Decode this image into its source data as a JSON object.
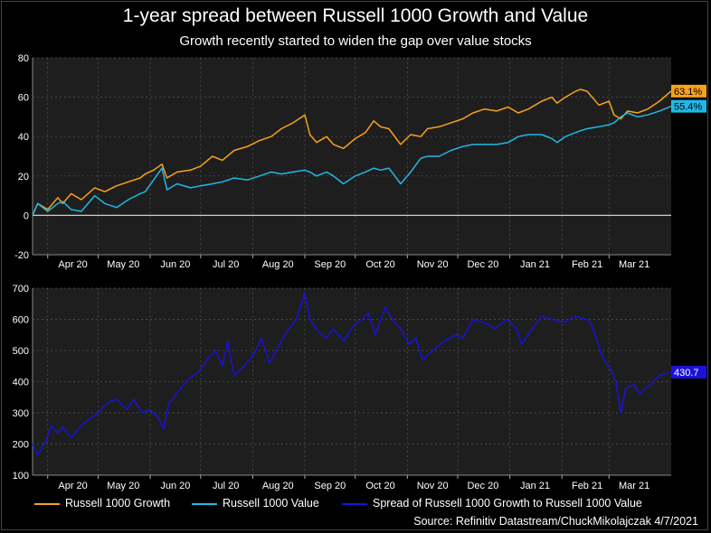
{
  "title": "1-year spread between Russell 1000 Growth and Value",
  "subtitle": "Growth recently started to widen the gap over value stocks",
  "source": "Source: Refinitiv Datastream/ChuckMikolajczak 4/7/2021",
  "colors": {
    "growth": "#f7a21b",
    "value": "#21b8e6",
    "spread": "#1a12d9",
    "background": "#1e1e1e",
    "grid": "#555555"
  },
  "chart_data": [
    {
      "type": "line",
      "x_ticks": [
        "Apr 20",
        "May 20",
        "Jun 20",
        "Jul 20",
        "Aug 20",
        "Sep 20",
        "Oct 20",
        "Nov 20",
        "Dec 20",
        "Jan 21",
        "Feb 21",
        "Mar 21"
      ],
      "x_range": [
        "2020-03-23",
        "2021-04-07"
      ],
      "ylim": [
        -20,
        80
      ],
      "y_ticks": [
        80,
        60,
        40,
        20,
        0,
        -20
      ],
      "grid": true,
      "zero_line": true,
      "series": [
        {
          "name": "Russell 1000 Growth",
          "color": "#f7a21b",
          "end_label": "63.1%",
          "points": [
            [
              "2020-03-23",
              0
            ],
            [
              "2020-03-26",
              6
            ],
            [
              "2020-04-01",
              3
            ],
            [
              "2020-04-07",
              9
            ],
            [
              "2020-04-10",
              6
            ],
            [
              "2020-04-15",
              11
            ],
            [
              "2020-04-21",
              8
            ],
            [
              "2020-04-29",
              14
            ],
            [
              "2020-05-05",
              12
            ],
            [
              "2020-05-12",
              15
            ],
            [
              "2020-05-19",
              17
            ],
            [
              "2020-05-26",
              19
            ],
            [
              "2020-05-29",
              21
            ],
            [
              "2020-06-03",
              23
            ],
            [
              "2020-06-08",
              26
            ],
            [
              "2020-06-11",
              19
            ],
            [
              "2020-06-17",
              22
            ],
            [
              "2020-06-25",
              23
            ],
            [
              "2020-07-01",
              25
            ],
            [
              "2020-07-08",
              30
            ],
            [
              "2020-07-14",
              28
            ],
            [
              "2020-07-21",
              33
            ],
            [
              "2020-07-29",
              35
            ],
            [
              "2020-08-05",
              38
            ],
            [
              "2020-08-12",
              40
            ],
            [
              "2020-08-18",
              44
            ],
            [
              "2020-08-25",
              47
            ],
            [
              "2020-09-01",
              51
            ],
            [
              "2020-09-04",
              41
            ],
            [
              "2020-09-08",
              37
            ],
            [
              "2020-09-14",
              40
            ],
            [
              "2020-09-18",
              36
            ],
            [
              "2020-09-24",
              34
            ],
            [
              "2020-10-01",
              39
            ],
            [
              "2020-10-07",
              42
            ],
            [
              "2020-10-12",
              48
            ],
            [
              "2020-10-16",
              45
            ],
            [
              "2020-10-21",
              44
            ],
            [
              "2020-10-28",
              36
            ],
            [
              "2020-11-03",
              41
            ],
            [
              "2020-11-09",
              40
            ],
            [
              "2020-11-13",
              44
            ],
            [
              "2020-11-20",
              45
            ],
            [
              "2020-11-27",
              47
            ],
            [
              "2020-12-04",
              49
            ],
            [
              "2020-12-10",
              52
            ],
            [
              "2020-12-17",
              54
            ],
            [
              "2020-12-24",
              53
            ],
            [
              "2020-12-31",
              55
            ],
            [
              "2021-01-06",
              52
            ],
            [
              "2021-01-12",
              54
            ],
            [
              "2021-01-20",
              58
            ],
            [
              "2021-01-26",
              60
            ],
            [
              "2021-01-29",
              57
            ],
            [
              "2021-02-03",
              60
            ],
            [
              "2021-02-09",
              63
            ],
            [
              "2021-02-12",
              64
            ],
            [
              "2021-02-16",
              63
            ],
            [
              "2021-02-23",
              56
            ],
            [
              "2021-03-01",
              58
            ],
            [
              "2021-03-04",
              51
            ],
            [
              "2021-03-08",
              49
            ],
            [
              "2021-03-12",
              53
            ],
            [
              "2021-03-18",
              52
            ],
            [
              "2021-03-24",
              54
            ],
            [
              "2021-03-31",
              58
            ],
            [
              "2021-04-07",
              63.1
            ]
          ]
        },
        {
          "name": "Russell 1000 Value",
          "color": "#21b8e6",
          "end_label": "55.4%",
          "points": [
            [
              "2020-03-23",
              0
            ],
            [
              "2020-03-26",
              6
            ],
            [
              "2020-04-01",
              2
            ],
            [
              "2020-04-07",
              6
            ],
            [
              "2020-04-10",
              7
            ],
            [
              "2020-04-15",
              3
            ],
            [
              "2020-04-21",
              2
            ],
            [
              "2020-04-29",
              10
            ],
            [
              "2020-05-05",
              6
            ],
            [
              "2020-05-12",
              4
            ],
            [
              "2020-05-19",
              8
            ],
            [
              "2020-05-26",
              11
            ],
            [
              "2020-05-29",
              12
            ],
            [
              "2020-06-03",
              18
            ],
            [
              "2020-06-08",
              24
            ],
            [
              "2020-06-11",
              13
            ],
            [
              "2020-06-17",
              16
            ],
            [
              "2020-06-25",
              14
            ],
            [
              "2020-07-01",
              15
            ],
            [
              "2020-07-08",
              16
            ],
            [
              "2020-07-14",
              17
            ],
            [
              "2020-07-21",
              19
            ],
            [
              "2020-07-29",
              18
            ],
            [
              "2020-08-05",
              20
            ],
            [
              "2020-08-12",
              22
            ],
            [
              "2020-08-18",
              21
            ],
            [
              "2020-08-25",
              22
            ],
            [
              "2020-09-01",
              23
            ],
            [
              "2020-09-04",
              22
            ],
            [
              "2020-09-08",
              20
            ],
            [
              "2020-09-14",
              22
            ],
            [
              "2020-09-18",
              20
            ],
            [
              "2020-09-24",
              16
            ],
            [
              "2020-10-01",
              20
            ],
            [
              "2020-10-07",
              22
            ],
            [
              "2020-10-12",
              24
            ],
            [
              "2020-10-16",
              23
            ],
            [
              "2020-10-21",
              24
            ],
            [
              "2020-10-28",
              16
            ],
            [
              "2020-11-03",
              22
            ],
            [
              "2020-11-09",
              29
            ],
            [
              "2020-11-13",
              30
            ],
            [
              "2020-11-20",
              30
            ],
            [
              "2020-11-27",
              33
            ],
            [
              "2020-12-04",
              35
            ],
            [
              "2020-12-10",
              36
            ],
            [
              "2020-12-17",
              36
            ],
            [
              "2020-12-24",
              36
            ],
            [
              "2020-12-31",
              37
            ],
            [
              "2021-01-06",
              40
            ],
            [
              "2021-01-12",
              41
            ],
            [
              "2021-01-20",
              41
            ],
            [
              "2021-01-26",
              39
            ],
            [
              "2021-01-29",
              37
            ],
            [
              "2021-02-03",
              40
            ],
            [
              "2021-02-09",
              42
            ],
            [
              "2021-02-12",
              43
            ],
            [
              "2021-02-16",
              44
            ],
            [
              "2021-02-23",
              45
            ],
            [
              "2021-03-01",
              46
            ],
            [
              "2021-03-04",
              47
            ],
            [
              "2021-03-08",
              50
            ],
            [
              "2021-03-12",
              52
            ],
            [
              "2021-03-18",
              50
            ],
            [
              "2021-03-24",
              51
            ],
            [
              "2021-03-31",
              53
            ],
            [
              "2021-04-07",
              55.4
            ]
          ]
        }
      ]
    },
    {
      "type": "line",
      "x_ticks": [
        "Apr 20",
        "May 20",
        "Jun 20",
        "Jul 20",
        "Aug 20",
        "Sep 20",
        "Oct 20",
        "Nov 20",
        "Dec 20",
        "Jan 21",
        "Feb 21",
        "Mar 21"
      ],
      "x_range": [
        "2020-03-23",
        "2021-04-07"
      ],
      "ylim": [
        100,
        700
      ],
      "y_ticks": [
        700,
        600,
        500,
        400,
        300,
        200,
        100
      ],
      "grid": true,
      "series": [
        {
          "name": "Spread of Russell 1000 Growth to Russell 1000 Value",
          "color": "#1a12d9",
          "end_label": "430.7",
          "points": [
            [
              "2020-03-23",
              200
            ],
            [
              "2020-03-26",
              165
            ],
            [
              "2020-03-31",
              210
            ],
            [
              "2020-04-03",
              260
            ],
            [
              "2020-04-07",
              235
            ],
            [
              "2020-04-10",
              255
            ],
            [
              "2020-04-15",
              220
            ],
            [
              "2020-04-21",
              260
            ],
            [
              "2020-04-27",
              285
            ],
            [
              "2020-05-01",
              300
            ],
            [
              "2020-05-06",
              330
            ],
            [
              "2020-05-12",
              345
            ],
            [
              "2020-05-18",
              310
            ],
            [
              "2020-05-22",
              345
            ],
            [
              "2020-05-27",
              300
            ],
            [
              "2020-06-01",
              310
            ],
            [
              "2020-06-05",
              290
            ],
            [
              "2020-06-09",
              250
            ],
            [
              "2020-06-12",
              330
            ],
            [
              "2020-06-18",
              370
            ],
            [
              "2020-06-24",
              410
            ],
            [
              "2020-06-30",
              430
            ],
            [
              "2020-07-06",
              480
            ],
            [
              "2020-07-10",
              500
            ],
            [
              "2020-07-14",
              450
            ],
            [
              "2020-07-17",
              530
            ],
            [
              "2020-07-21",
              420
            ],
            [
              "2020-07-27",
              450
            ],
            [
              "2020-08-03",
              500
            ],
            [
              "2020-08-06",
              540
            ],
            [
              "2020-08-11",
              460
            ],
            [
              "2020-08-17",
              520
            ],
            [
              "2020-08-21",
              560
            ],
            [
              "2020-08-27",
              600
            ],
            [
              "2020-09-01",
              685
            ],
            [
              "2020-09-04",
              600
            ],
            [
              "2020-09-09",
              560
            ],
            [
              "2020-09-14",
              540
            ],
            [
              "2020-09-18",
              570
            ],
            [
              "2020-09-24",
              530
            ],
            [
              "2020-09-30",
              580
            ],
            [
              "2020-10-05",
              600
            ],
            [
              "2020-10-09",
              620
            ],
            [
              "2020-10-13",
              550
            ],
            [
              "2020-10-19",
              640
            ],
            [
              "2020-10-23",
              600
            ],
            [
              "2020-10-28",
              570
            ],
            [
              "2020-11-02",
              520
            ],
            [
              "2020-11-06",
              540
            ],
            [
              "2020-11-10",
              470
            ],
            [
              "2020-11-16",
              500
            ],
            [
              "2020-11-23",
              530
            ],
            [
              "2020-11-30",
              550
            ],
            [
              "2020-12-04",
              540
            ],
            [
              "2020-12-10",
              600
            ],
            [
              "2020-12-17",
              590
            ],
            [
              "2020-12-23",
              570
            ],
            [
              "2020-12-30",
              600
            ],
            [
              "2021-01-05",
              570
            ],
            [
              "2021-01-08",
              520
            ],
            [
              "2021-01-13",
              560
            ],
            [
              "2021-01-20",
              610
            ],
            [
              "2021-01-26",
              600
            ],
            [
              "2021-02-02",
              590
            ],
            [
              "2021-02-09",
              610
            ],
            [
              "2021-02-16",
              600
            ],
            [
              "2021-02-19",
              580
            ],
            [
              "2021-02-23",
              510
            ],
            [
              "2021-02-26",
              470
            ],
            [
              "2021-03-02",
              440
            ],
            [
              "2021-03-05",
              400
            ],
            [
              "2021-03-08",
              300
            ],
            [
              "2021-03-11",
              380
            ],
            [
              "2021-03-16",
              390
            ],
            [
              "2021-03-19",
              360
            ],
            [
              "2021-03-23",
              380
            ],
            [
              "2021-03-26",
              390
            ],
            [
              "2021-03-31",
              420
            ],
            [
              "2021-04-07",
              430.7
            ]
          ]
        }
      ]
    }
  ],
  "legend": [
    {
      "label": "Russell 1000 Growth",
      "color": "#f7a21b"
    },
    {
      "label": "Russell 1000 Value",
      "color": "#21b8e6"
    },
    {
      "label": "Spread of Russell 1000 Growth to Russell 1000 Value",
      "color": "#1a12d9"
    }
  ]
}
